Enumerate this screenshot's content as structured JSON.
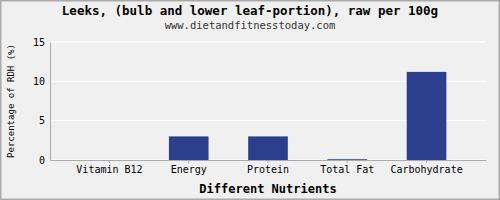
{
  "chart_data": {
    "type": "bar",
    "title": "Leeks, (bulb and lower leaf-portion), raw per 100g",
    "subtitle": "www.dietandfitnesstoday.com",
    "xlabel": "Different Nutrients",
    "ylabel": "Percentage of RDH (%)",
    "categories": [
      "Vitamin B12",
      "Energy",
      "Protein",
      "Total Fat",
      "Carbohydrate"
    ],
    "values": [
      0,
      3.0,
      3.0,
      0.1,
      11.2
    ],
    "color": "#2b3f8c",
    "ylim": [
      0,
      15
    ],
    "yticks": [
      0,
      5,
      10,
      15
    ],
    "grid": true
  }
}
